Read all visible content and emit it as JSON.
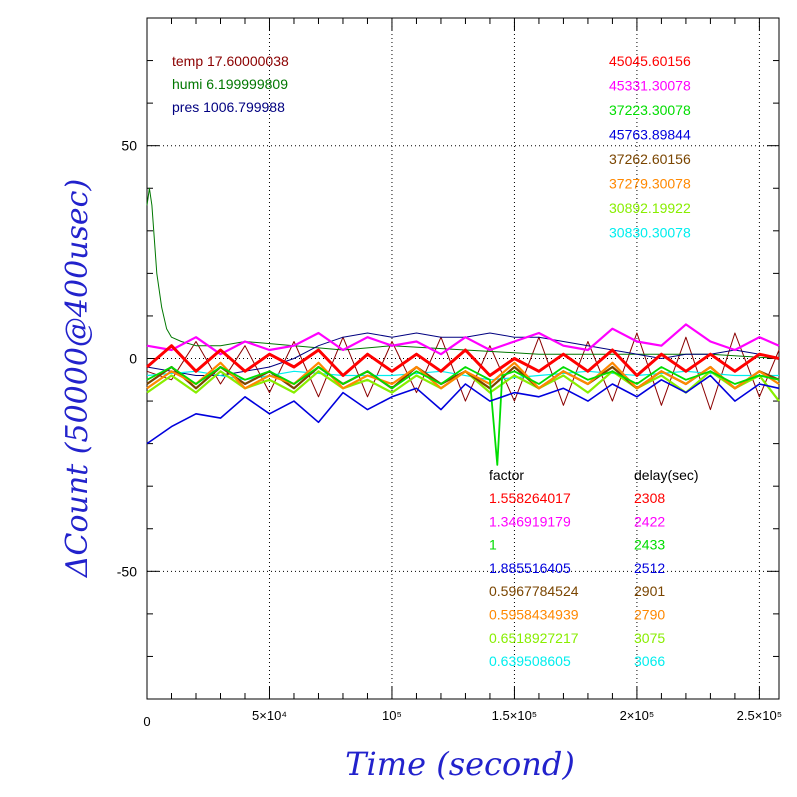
{
  "chart_data": {
    "type": "line",
    "title": "",
    "xlabel": "Time (second)",
    "ylabel": "ΔCount (50000@400usec)",
    "xlim": [
      0,
      258000
    ],
    "ylim": [
      -80,
      80
    ],
    "grid": true,
    "x_ticks": [
      {
        "value": 0,
        "label": "0"
      },
      {
        "value": 50000,
        "label": "5×10⁴"
      },
      {
        "value": 100000,
        "label": "10⁵"
      },
      {
        "value": 150000,
        "label": "1.5×10⁵"
      },
      {
        "value": 200000,
        "label": "2×10⁵"
      },
      {
        "value": 250000,
        "label": "2.5×10⁵"
      }
    ],
    "y_ticks": [
      {
        "value": -50,
        "label": "-50"
      },
      {
        "value": 0,
        "label": "0"
      },
      {
        "value": 50,
        "label": "50"
      }
    ],
    "environment": [
      {
        "label": "temp 17.60000038",
        "color": "#8b0000"
      },
      {
        "label": "humi 6.199999809",
        "color": "#007700"
      },
      {
        "label": "pres 1006.799988",
        "color": "#000080"
      }
    ],
    "series": [
      {
        "value": "45045.60156",
        "factor": "1.558264017",
        "delay": "2308",
        "color": "#ff0000",
        "x": [
          0,
          10000,
          20000,
          30000,
          40000,
          50000,
          60000,
          70000,
          80000,
          90000,
          100000,
          110000,
          120000,
          130000,
          140000,
          150000,
          160000,
          170000,
          180000,
          190000,
          200000,
          210000,
          220000,
          230000,
          240000,
          250000,
          258000
        ],
        "y": [
          -2,
          3,
          -3,
          2,
          -3,
          1,
          -2,
          2,
          -4,
          1,
          -3,
          1,
          -3,
          2,
          -4,
          0,
          -3,
          1,
          -3,
          2,
          -4,
          1,
          -3,
          1,
          -3,
          1,
          0
        ]
      },
      {
        "value": "45331.30078",
        "factor": "1.346919179",
        "delay": "2422",
        "color": "#ff00ff",
        "x": [
          0,
          10000,
          20000,
          30000,
          40000,
          50000,
          60000,
          70000,
          80000,
          90000,
          100000,
          110000,
          120000,
          130000,
          140000,
          150000,
          160000,
          170000,
          180000,
          190000,
          200000,
          210000,
          220000,
          230000,
          240000,
          250000,
          258000
        ],
        "y": [
          3,
          2,
          5,
          1,
          4,
          2,
          3,
          6,
          2,
          5,
          3,
          4,
          1,
          5,
          2,
          4,
          6,
          3,
          2,
          7,
          4,
          3,
          8,
          4,
          2,
          5,
          3
        ]
      },
      {
        "value": "37223.30078",
        "factor": "1",
        "delay": "2433",
        "color": "#00dd00",
        "x": [
          0,
          10000,
          20000,
          30000,
          40000,
          50000,
          60000,
          70000,
          80000,
          90000,
          100000,
          110000,
          120000,
          130000,
          140000,
          143000,
          145000,
          150000,
          160000,
          170000,
          180000,
          190000,
          200000,
          210000,
          220000,
          230000,
          240000,
          250000,
          258000
        ],
        "y": [
          -5,
          -2,
          -6,
          -2,
          -5,
          -3,
          -6,
          -2,
          -6,
          -3,
          -7,
          -3,
          -6,
          -2,
          -5,
          -25,
          -4,
          -3,
          -6,
          -2,
          -5,
          -3,
          -6,
          -2,
          -5,
          -3,
          -6,
          -4,
          -5
        ]
      },
      {
        "value": "45763.89844",
        "factor": "1.885516405",
        "delay": "2512",
        "color": "#0000dd",
        "x": [
          0,
          10000,
          20000,
          30000,
          40000,
          50000,
          60000,
          70000,
          80000,
          90000,
          100000,
          110000,
          120000,
          130000,
          140000,
          150000,
          160000,
          170000,
          180000,
          190000,
          200000,
          210000,
          220000,
          230000,
          240000,
          250000,
          258000
        ],
        "y": [
          -20,
          -16,
          -13,
          -14,
          -9,
          -13,
          -10,
          -15,
          -8,
          -12,
          -9,
          -7,
          -12,
          -6,
          -10,
          -8,
          -9,
          -7,
          -10,
          -6,
          -9,
          -5,
          -8,
          -4,
          -10,
          -6,
          -7
        ]
      },
      {
        "value": "37262.60156",
        "factor": "0.5967784524",
        "delay": "2901",
        "color": "#7a4500",
        "x": [
          0,
          10000,
          20000,
          30000,
          40000,
          50000,
          60000,
          70000,
          80000,
          90000,
          100000,
          110000,
          120000,
          130000,
          140000,
          150000,
          160000,
          170000,
          180000,
          190000,
          200000,
          210000,
          220000,
          230000,
          240000,
          250000,
          258000
        ],
        "y": [
          -6,
          -2,
          -7,
          -2,
          -6,
          -3,
          -7,
          -2,
          -6,
          -3,
          -7,
          -2,
          -6,
          -3,
          -7,
          -2,
          -7,
          -3,
          -6,
          -2,
          -7,
          -3,
          -6,
          -2,
          -7,
          -3,
          -5
        ]
      },
      {
        "value": "37279.30078",
        "factor": "0.5958434939",
        "delay": "2790",
        "color": "#ff8800",
        "x": [
          0,
          10000,
          20000,
          30000,
          40000,
          50000,
          60000,
          70000,
          80000,
          90000,
          100000,
          110000,
          120000,
          130000,
          140000,
          150000,
          160000,
          170000,
          180000,
          190000,
          200000,
          210000,
          220000,
          230000,
          240000,
          250000,
          258000
        ],
        "y": [
          -7,
          -3,
          -6,
          -1,
          -7,
          -4,
          -6,
          -1,
          -7,
          -4,
          -6,
          -2,
          -7,
          -3,
          -6,
          -1,
          -7,
          -3,
          -6,
          -1,
          -7,
          -3,
          -6,
          -2,
          -7,
          -3,
          -6
        ]
      },
      {
        "value": "30892.19922",
        "factor": "0.6518927217",
        "delay": "3075",
        "color": "#88ee00",
        "x": [
          0,
          10000,
          20000,
          30000,
          40000,
          50000,
          60000,
          70000,
          80000,
          90000,
          100000,
          110000,
          120000,
          130000,
          140000,
          150000,
          160000,
          170000,
          180000,
          190000,
          200000,
          210000,
          220000,
          230000,
          240000,
          250000,
          258000
        ],
        "y": [
          -8,
          -4,
          -8,
          -3,
          -7,
          -5,
          -8,
          -3,
          -7,
          -5,
          -8,
          -4,
          -7,
          -3,
          -8,
          -4,
          -7,
          -4,
          -8,
          -3,
          -7,
          -4,
          -8,
          -3,
          -7,
          -4,
          -10
        ]
      },
      {
        "value": "30830.30078",
        "factor": "0.639508605",
        "delay": "3066",
        "color": "#00eeee",
        "x": [
          0,
          20000,
          40000,
          60000,
          80000,
          100000,
          120000,
          140000,
          160000,
          180000,
          200000,
          220000,
          240000,
          258000
        ],
        "y": [
          -4,
          -3,
          -5,
          -3,
          -4,
          -4,
          -3,
          -5,
          -4,
          -3,
          -4,
          -3,
          -4,
          -4
        ]
      }
    ],
    "env_series": [
      {
        "name": "temp",
        "color": "#8b0000",
        "x": [
          0,
          10000,
          20000,
          30000,
          40000,
          50000,
          60000,
          70000,
          80000,
          90000,
          100000,
          110000,
          120000,
          130000,
          140000,
          150000,
          160000,
          170000,
          180000,
          190000,
          200000,
          210000,
          220000,
          230000,
          240000,
          250000,
          258000
        ],
        "y": [
          -3,
          -5,
          4,
          -6,
          3,
          -8,
          4,
          -9,
          5,
          -9,
          4,
          -8,
          5,
          -10,
          3,
          -10,
          5,
          -11,
          4,
          -10,
          6,
          -11,
          5,
          -12,
          6,
          -9,
          2
        ]
      },
      {
        "name": "humi",
        "color": "#007700",
        "x": [
          0,
          1000,
          2000,
          4000,
          6000,
          8000,
          10000,
          14000,
          20000,
          30000,
          40000,
          60000,
          80000,
          100000,
          130000,
          160000,
          200000,
          230000,
          258000
        ],
        "y": [
          36,
          40,
          36,
          20,
          12,
          7,
          5,
          4,
          3,
          3,
          4,
          3,
          2,
          3,
          2,
          1,
          1,
          1,
          0
        ]
      },
      {
        "name": "pres",
        "color": "#000080",
        "x": [
          0,
          10000,
          20000,
          30000,
          40000,
          50000,
          60000,
          70000,
          80000,
          90000,
          100000,
          110000,
          120000,
          130000,
          140000,
          150000,
          160000,
          170000,
          180000,
          190000,
          200000,
          210000,
          220000,
          230000,
          240000,
          250000,
          258000
        ],
        "y": [
          -2,
          -3,
          -4,
          -4,
          -3,
          -2,
          0,
          3,
          5,
          6,
          5,
          6,
          5,
          5,
          6,
          5,
          5,
          4,
          3,
          2,
          1,
          0,
          1,
          1,
          2,
          1,
          0
        ]
      }
    ],
    "bottom_legend_headers": {
      "factor": "factor",
      "delay": "delay(sec)"
    }
  }
}
